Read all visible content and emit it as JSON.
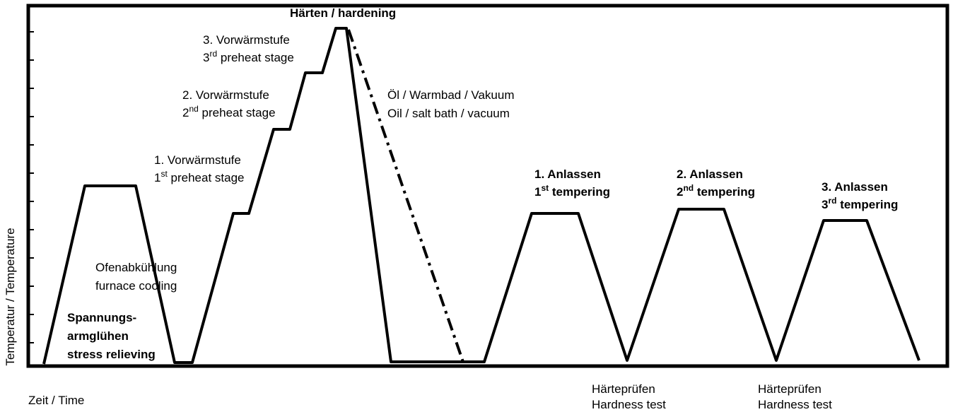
{
  "y_axis": "Temperatur / Temperature",
  "x_axis": "Zeit / Time",
  "hardening": "Härten / hardening",
  "quench": [
    "Öl / Warmbad / Vakuum",
    "Oil / salt bath / vacuum"
  ],
  "preheat": [
    {
      "line1": "1. Vorwärmstufe",
      "ordinal": "1",
      "suffix": "st",
      "rest": " preheat stage"
    },
    {
      "line1": "2. Vorwärmstufe",
      "ordinal": "2",
      "suffix": "nd",
      "rest": " preheat stage"
    },
    {
      "line1": "3. Vorwärmstufe",
      "ordinal": "3",
      "suffix": "rd",
      "rest": " preheat stage"
    }
  ],
  "stress": [
    "Spannungs-",
    "armglühen",
    "stress relieving"
  ],
  "cooling": [
    "Ofenabkühlung",
    "furnace cooling"
  ],
  "tempering": [
    {
      "line1": "1. Anlassen",
      "ordinal": "1",
      "suffix": "st",
      "rest": " tempering"
    },
    {
      "line1": "2. Anlassen",
      "ordinal": "2",
      "suffix": "nd",
      "rest": " tempering"
    },
    {
      "line1": "3. Anlassen",
      "ordinal": "3",
      "suffix": "rd",
      "rest": " tempering"
    }
  ],
  "hardness": [
    [
      "Härteprüfen",
      "Hardness test"
    ],
    [
      "Härteprüfen",
      "Hardness test"
    ]
  ]
}
